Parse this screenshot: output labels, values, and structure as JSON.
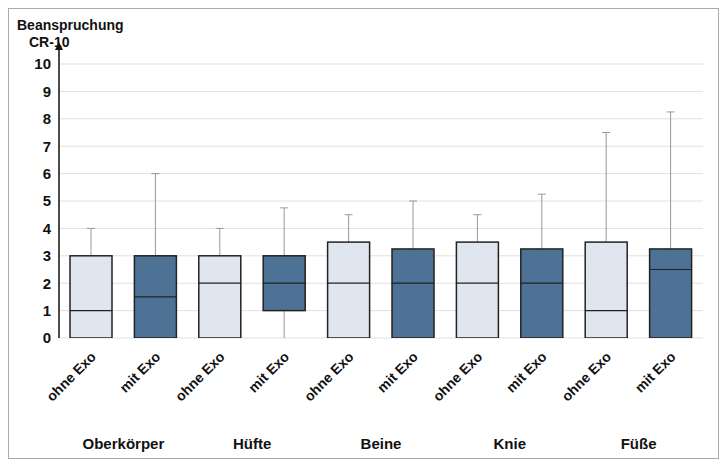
{
  "chart_data": {
    "type": "box",
    "ylabel": [
      "Beanspruchung",
      "CR-10"
    ],
    "categories": [
      "ohne Exo",
      "mit Exo",
      "ohne Exo",
      "mit Exo",
      "ohne Exo",
      "mit Exo",
      "ohne Exo",
      "mit Exo",
      "ohne Exo",
      "mit Exo"
    ],
    "groups": [
      "Oberkörper",
      "Hüfte",
      "Beine",
      "Knie",
      "Füße"
    ],
    "colors": [
      "#dfe6f0",
      "#4e7296",
      "#dfe6f0",
      "#4e7296",
      "#dfe6f0",
      "#4e7296",
      "#dfe6f0",
      "#4e7296",
      "#dfe6f0",
      "#4e7296"
    ],
    "min": [
      0,
      0,
      0,
      0,
      0,
      0,
      0,
      0,
      0,
      0
    ],
    "q1": [
      0,
      0,
      0,
      1,
      0,
      0,
      0,
      0,
      0,
      0
    ],
    "median": [
      1,
      1.5,
      2,
      2,
      2,
      2,
      2,
      2,
      1,
      2.5
    ],
    "q3": [
      3,
      3,
      3,
      3,
      3.5,
      3.25,
      3.5,
      3.25,
      3.5,
      3.25
    ],
    "max": [
      4,
      6,
      4,
      4.75,
      4.5,
      5,
      4.5,
      5.25,
      7.5,
      8.25
    ],
    "ylim": [
      0,
      10
    ],
    "yticks": [
      0,
      1,
      2,
      3,
      4,
      5,
      6,
      7,
      8,
      9,
      10
    ],
    "grid": true
  }
}
